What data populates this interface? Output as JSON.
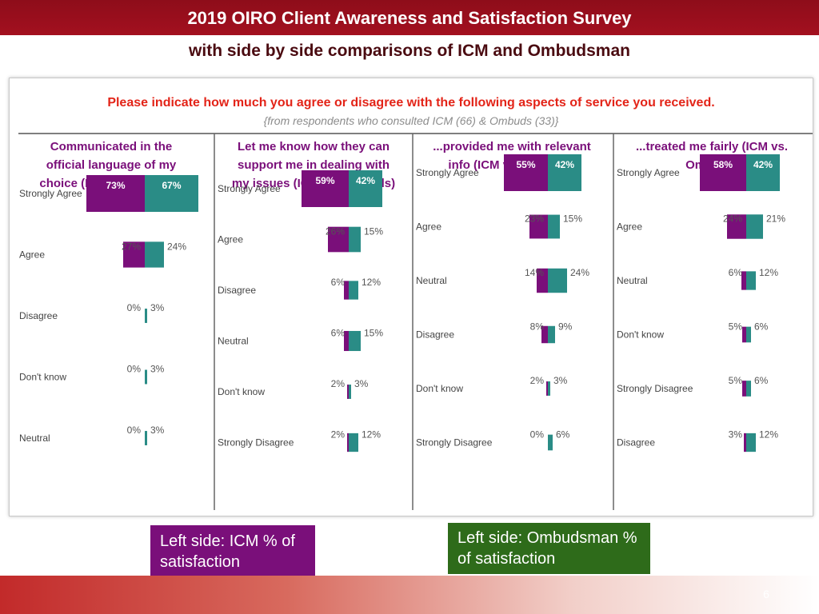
{
  "header": {
    "title": "2019 OIRO Client Awareness and Satisfaction Survey",
    "subtitle": "with side by side comparisons of ICM and Ombudsman"
  },
  "panel": {
    "question": "Please indicate how much you agree or disagree with the following aspects of service you received.",
    "respondents": "{from respondents who consulted ICM (66) & Ombuds (33)}"
  },
  "chart_data": {
    "type": "bar",
    "orientation": "back-to-back horizontal",
    "colors": {
      "icm": "#7a0f7a",
      "ombuds": "#2a8c86"
    },
    "panels": [
      {
        "title_lines": [
          "Communicated in the",
          "official language of my",
          "choice (ICM vs. Ombuds)"
        ],
        "categories": [
          "Strongly Agree",
          "Agree",
          "Disagree",
          "Don't know",
          "Neutral"
        ],
        "series": [
          {
            "name": "ICM",
            "values": [
              73,
              27,
              0,
              0,
              0
            ]
          },
          {
            "name": "Ombuds",
            "values": [
              67,
              24,
              3,
              3,
              3
            ]
          }
        ]
      },
      {
        "title_lines": [
          "Let me know how they can",
          "support me in dealing with",
          "my issues (ICM vs. Ombuds)"
        ],
        "categories": [
          "Strongly Agree",
          "Agree",
          "Disagree",
          "Neutral",
          "Don't know",
          "Strongly Disagree"
        ],
        "series": [
          {
            "name": "ICM",
            "values": [
              59,
              26,
              6,
              6,
              2,
              2
            ]
          },
          {
            "name": "Ombuds",
            "values": [
              42,
              15,
              12,
              15,
              3,
              12
            ]
          }
        ]
      },
      {
        "title_lines": [
          "...provided me with relevant",
          "info (ICM vs. Ombuds)"
        ],
        "categories": [
          "Strongly Agree",
          "Agree",
          "Neutral",
          "Disagree",
          "Don't know",
          "Strongly Disagree"
        ],
        "series": [
          {
            "name": "ICM",
            "values": [
              55,
              23,
              14,
              8,
              2,
              0
            ]
          },
          {
            "name": "Ombuds",
            "values": [
              42,
              15,
              24,
              9,
              3,
              6
            ]
          }
        ]
      },
      {
        "title_lines": [
          "...treated me fairly (ICM vs.",
          "Ombuds)"
        ],
        "categories": [
          "Strongly Agree",
          "Agree",
          "Neutral",
          "Don't know",
          "Strongly Disagree",
          "Disagree"
        ],
        "series": [
          {
            "name": "ICM",
            "values": [
              58,
              24,
              6,
              5,
              5,
              3
            ]
          },
          {
            "name": "Ombuds",
            "values": [
              42,
              21,
              12,
              6,
              6,
              12
            ]
          }
        ]
      }
    ]
  },
  "legend": {
    "icm": "Left side: ICM % of satisfaction",
    "ombuds": "Left side: Ombudsman % of satisfaction"
  },
  "page_number": "6"
}
